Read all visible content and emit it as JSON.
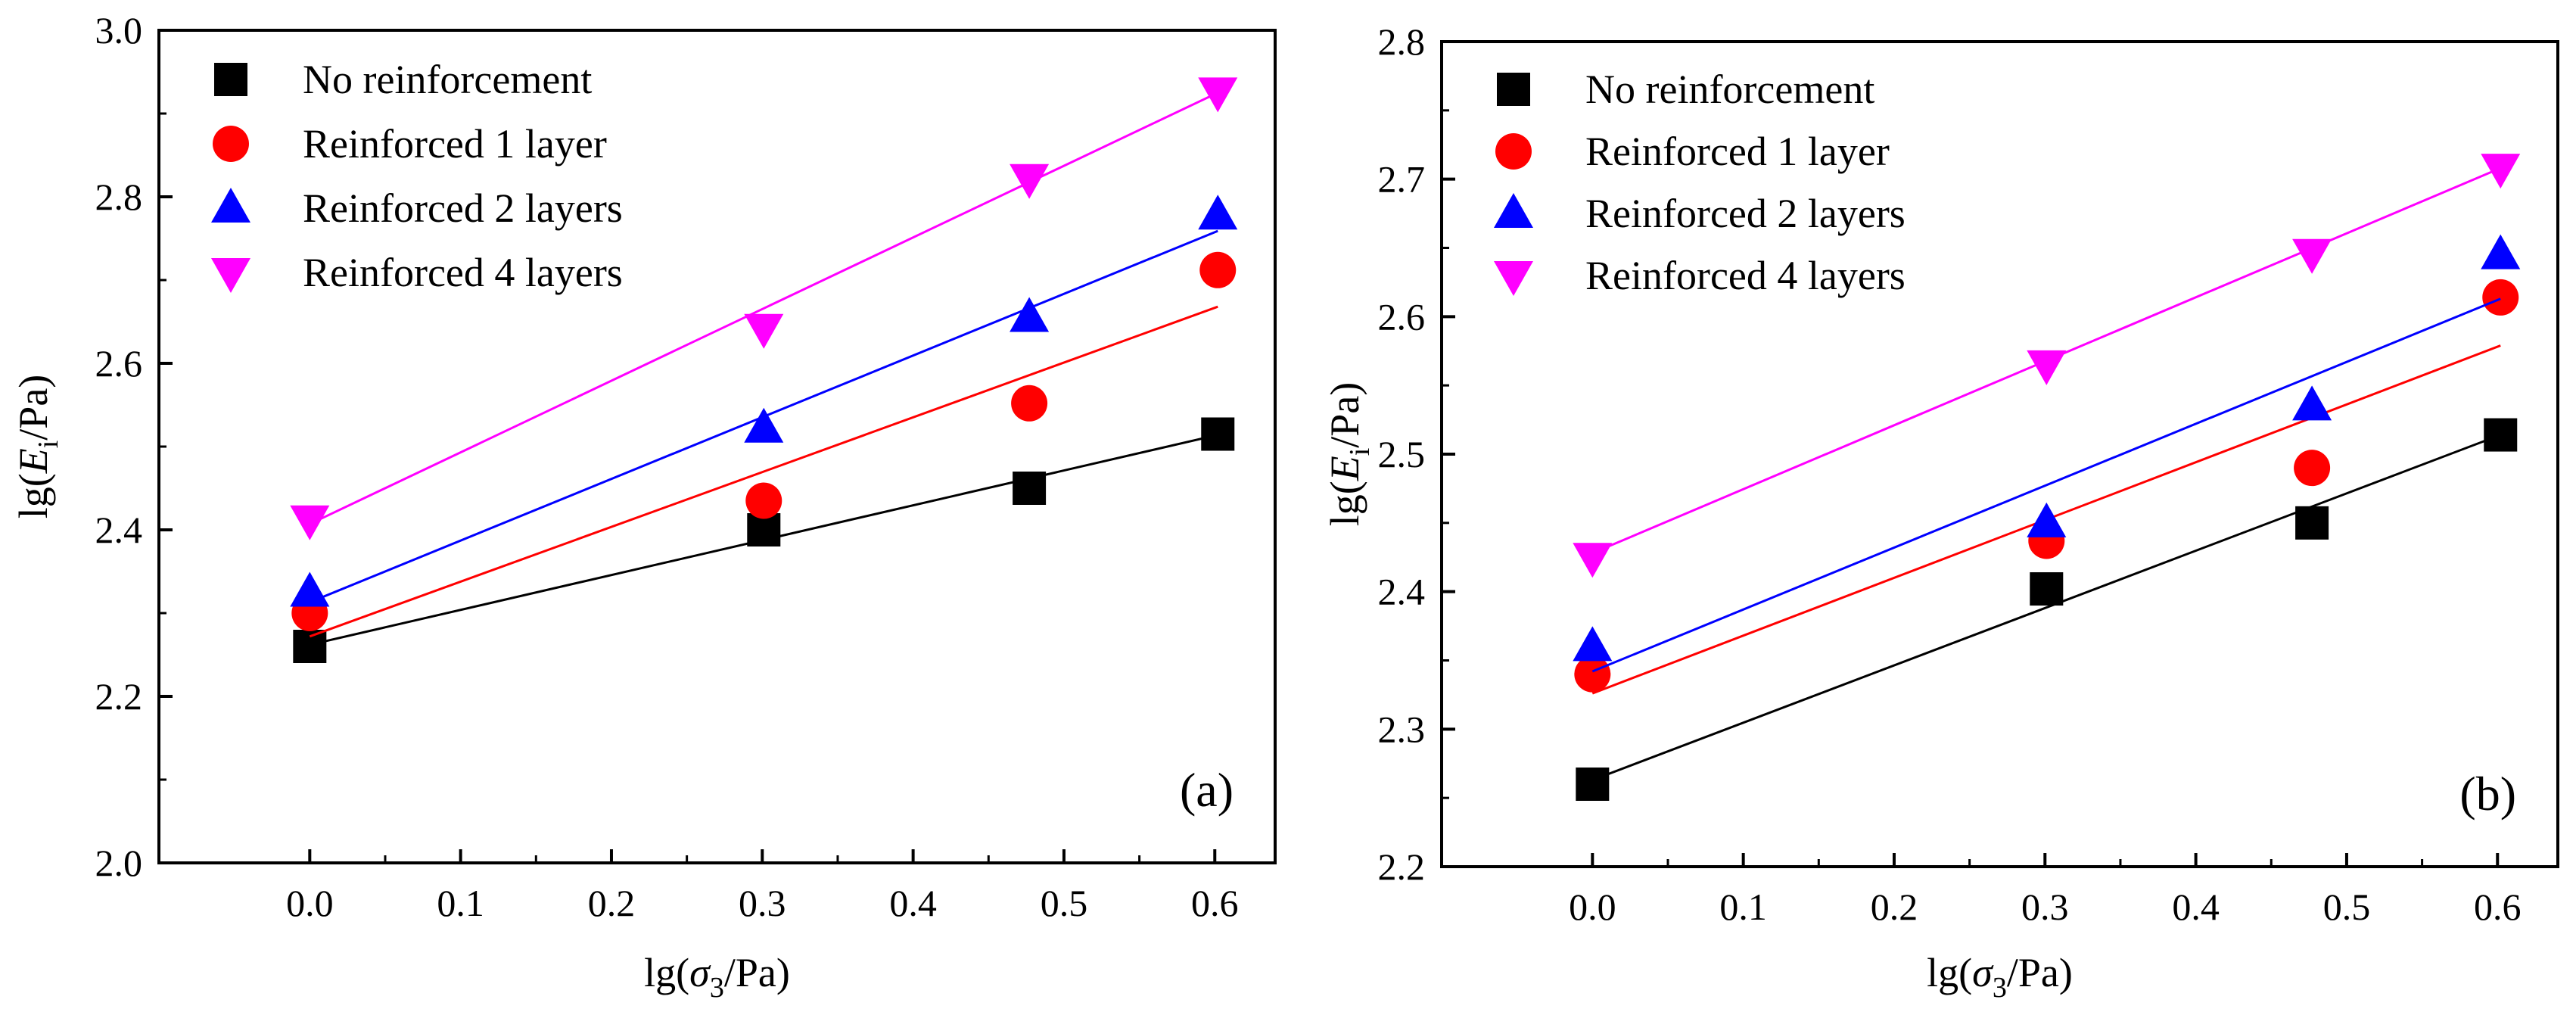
{
  "chart_data": [
    {
      "type": "scatter",
      "panel_label": "(a)",
      "xlabel": {
        "prefix": "lg(",
        "symbol": "σ",
        "subscript": "3",
        "suffix": "/Pa)"
      },
      "ylabel": {
        "prefix": "lg(",
        "symbol": "E",
        "subscript": "i",
        "suffix": "/Pa)"
      },
      "xlim": [
        -0.1,
        0.64
      ],
      "ylim": [
        2.0,
        3.0
      ],
      "xticks": [
        "0.0",
        "0.1",
        "0.2",
        "0.3",
        "0.4",
        "0.5",
        "0.6"
      ],
      "yticks": [
        "2.0",
        "2.2",
        "2.4",
        "2.6",
        "2.8",
        "3.0"
      ],
      "x": [
        0.0,
        0.301,
        0.477,
        0.602
      ],
      "legend_position": "top-left",
      "series": [
        {
          "name": "No reinforcement",
          "marker": "square",
          "color": "#000000",
          "values": [
            2.26,
            2.4,
            2.45,
            2.515
          ],
          "fit": [
            2.262,
            2.514
          ]
        },
        {
          "name": "Reinforced 1 layer",
          "marker": "circle",
          "color": "#ff0000",
          "values": [
            2.3,
            2.435,
            2.552,
            2.712
          ],
          "fit": [
            2.272,
            2.668
          ]
        },
        {
          "name": "Reinforced 2 layers",
          "marker": "triangle-up",
          "color": "#0000ff",
          "values": [
            2.325,
            2.522,
            2.655,
            2.778
          ],
          "fit": [
            2.313,
            2.759
          ]
        },
        {
          "name": "Reinforced 4 layers",
          "marker": "triangle-down",
          "color": "#ff00ff",
          "values": [
            2.412,
            2.642,
            2.822,
            2.926
          ],
          "fit": [
            2.407,
            2.925
          ]
        }
      ]
    },
    {
      "type": "scatter",
      "panel_label": "(b)",
      "xlabel": {
        "prefix": "lg(",
        "symbol": "σ",
        "subscript": "3",
        "suffix": "/Pa)"
      },
      "ylabel": {
        "prefix": "lg(",
        "symbol": "E",
        "subscript": "i",
        "suffix": "/Pa)"
      },
      "xlim": [
        -0.1,
        0.64
      ],
      "ylim": [
        2.2,
        2.8
      ],
      "xticks": [
        "0.0",
        "0.1",
        "0.2",
        "0.3",
        "0.4",
        "0.5",
        "0.6"
      ],
      "yticks": [
        "2.2",
        "2.3",
        "2.4",
        "2.5",
        "2.6",
        "2.7",
        "2.8"
      ],
      "x": [
        0.0,
        0.301,
        0.477,
        0.602
      ],
      "legend_position": "top-left",
      "series": [
        {
          "name": "No reinforcement",
          "marker": "square",
          "color": "#000000",
          "values": [
            2.26,
            2.402,
            2.45,
            2.514
          ],
          "fit": [
            2.263,
            2.514
          ]
        },
        {
          "name": "Reinforced 1 layer",
          "marker": "circle",
          "color": "#ff0000",
          "values": [
            2.34,
            2.437,
            2.49,
            2.614
          ],
          "fit": [
            2.326,
            2.579
          ]
        },
        {
          "name": "Reinforced 2 layers",
          "marker": "triangle-up",
          "color": "#0000ff",
          "values": [
            2.36,
            2.45,
            2.535,
            2.645
          ],
          "fit": [
            2.342,
            2.613
          ]
        },
        {
          "name": "Reinforced 4 layers",
          "marker": "triangle-down",
          "color": "#ff00ff",
          "values": [
            2.425,
            2.565,
            2.646,
            2.708
          ],
          "fit": [
            2.428,
            2.708
          ]
        }
      ]
    }
  ]
}
